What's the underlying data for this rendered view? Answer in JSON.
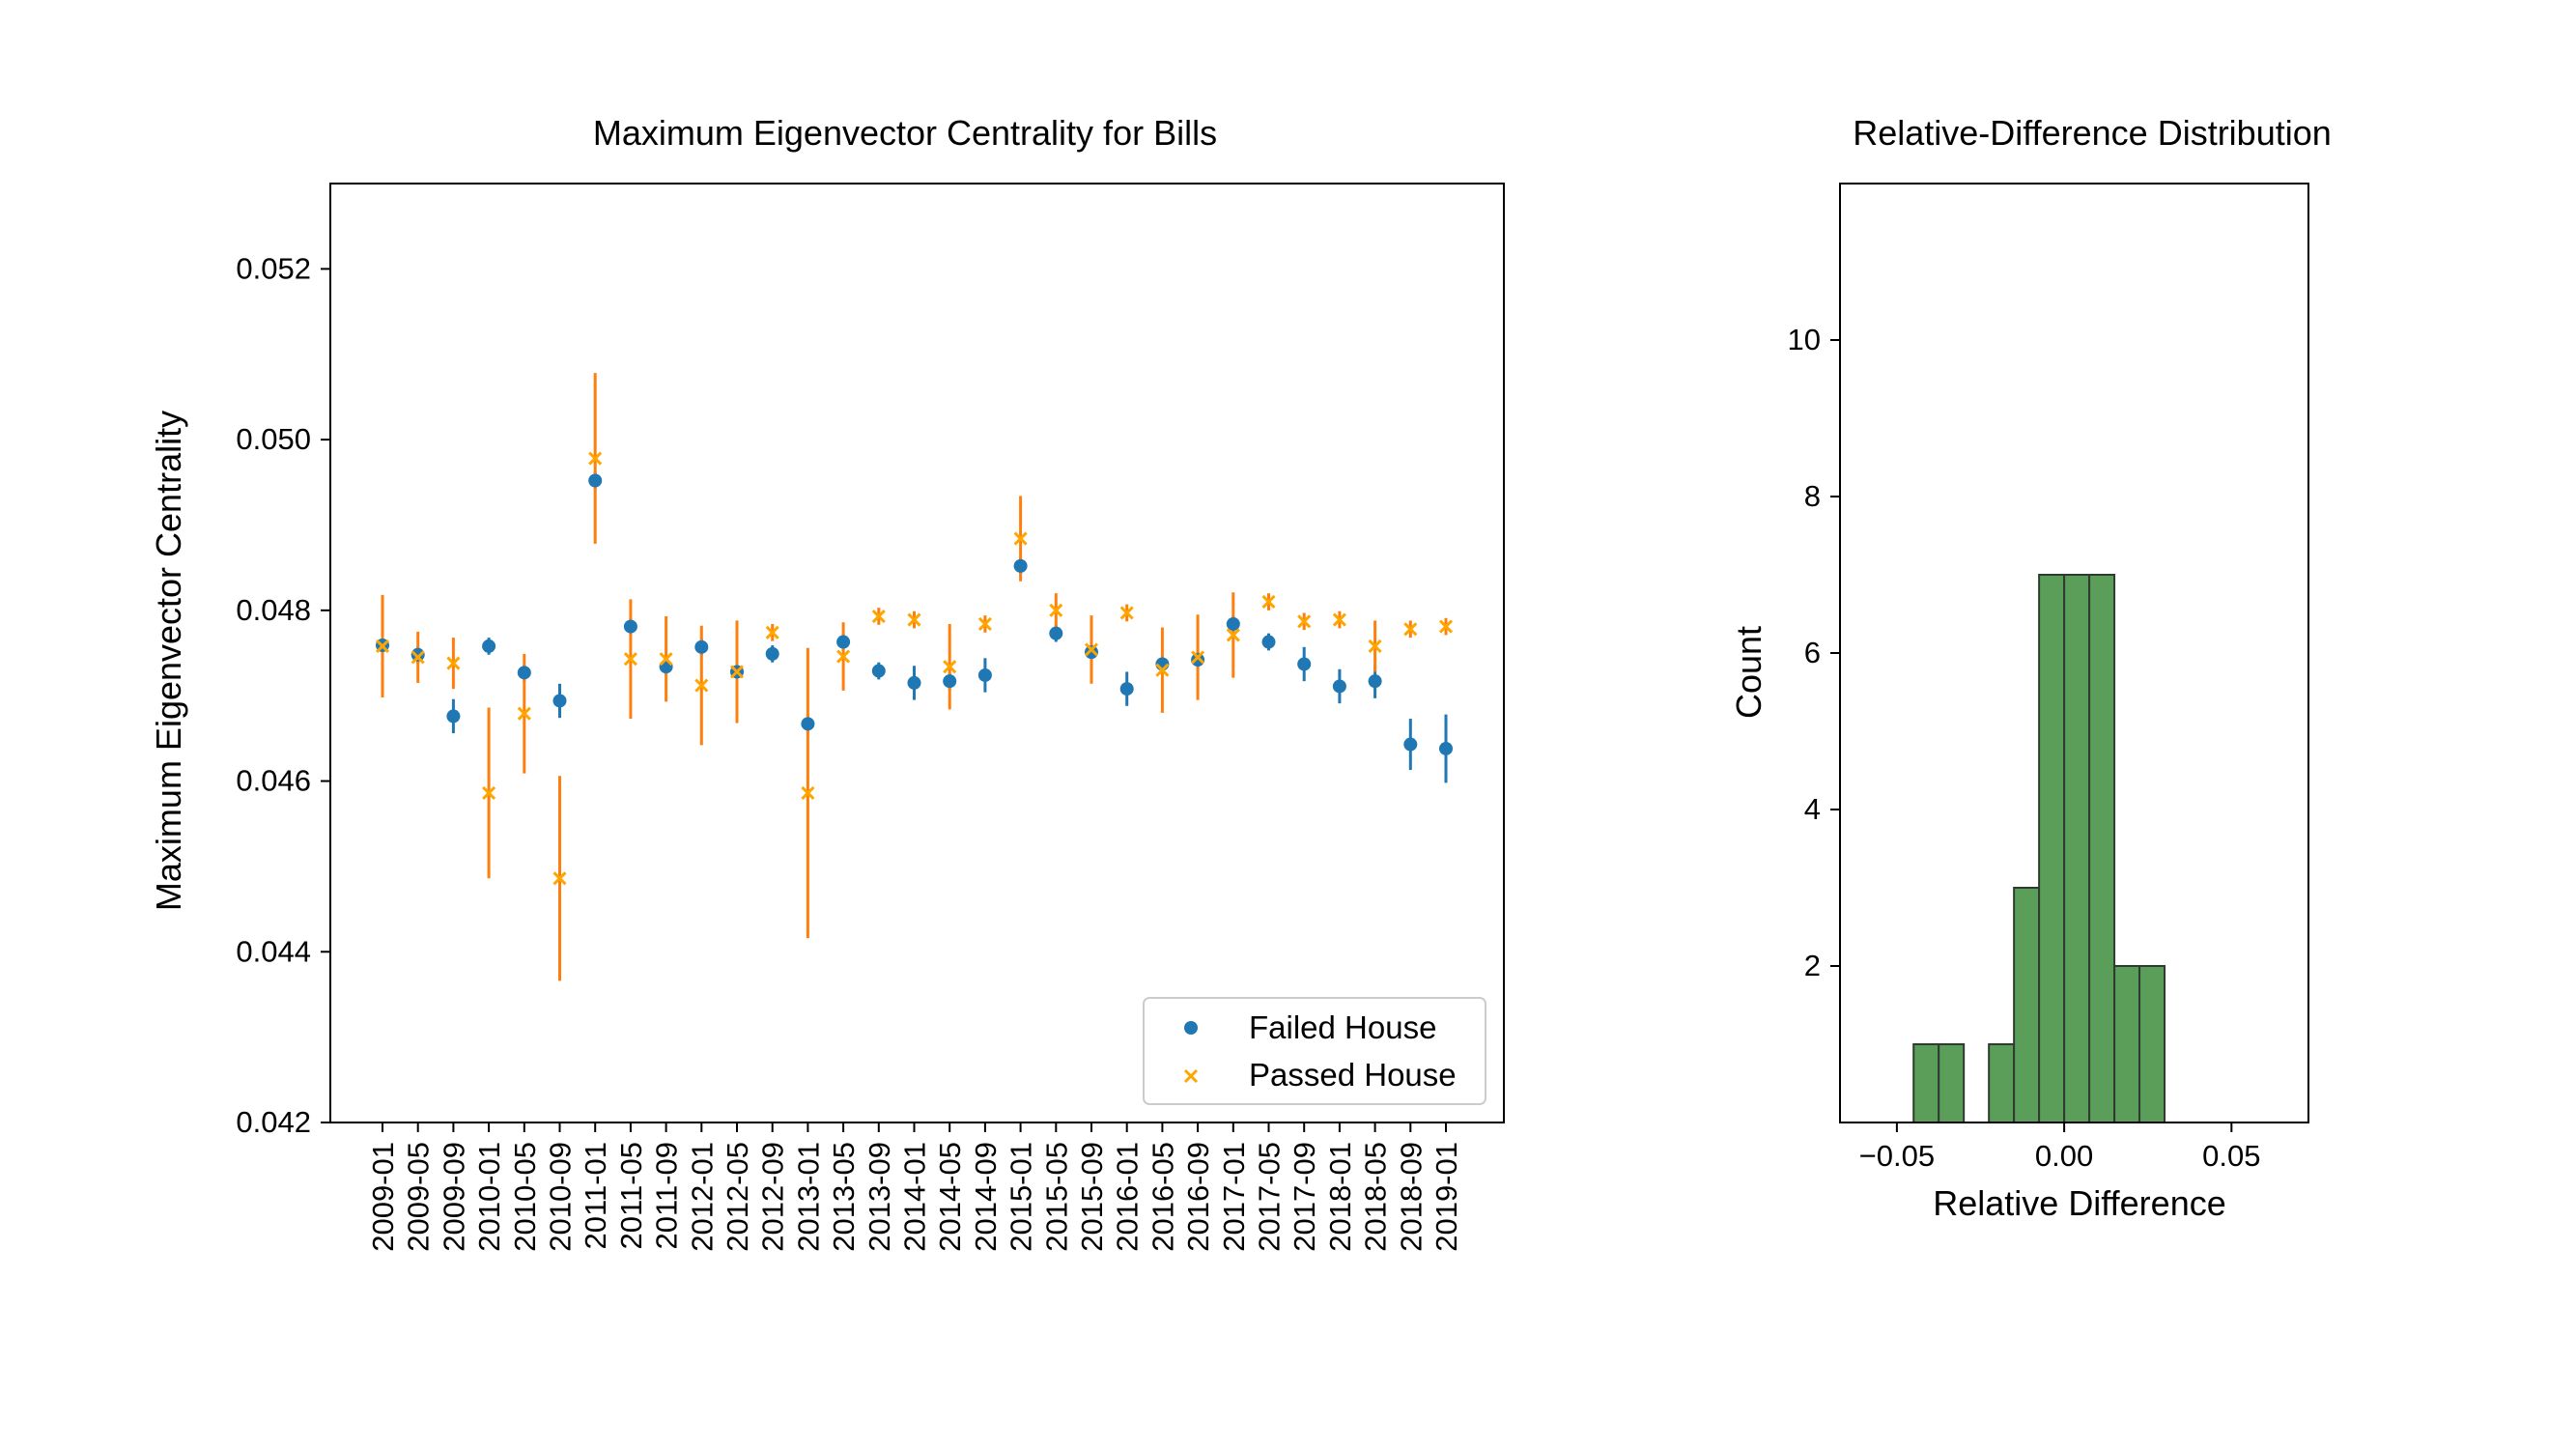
{
  "colors": {
    "failed": "#1f77b4",
    "passed_marker": "#ffa500",
    "passed_errorbar": "#ff7f0e",
    "hist_fill": "#5a9e5a",
    "hist_edge": "#2f3b2f"
  },
  "chart_data": [
    {
      "type": "scatter",
      "title": "Maximum Eigenvector Centrality for Bills",
      "xlabel": "",
      "ylabel": "Maximum Eigenvector Centrality",
      "ylim": [
        0.042,
        0.053
      ],
      "yticks": [
        "0.042",
        "0.044",
        "0.046",
        "0.048",
        "0.050",
        "0.052"
      ],
      "ytick_values": [
        0.042,
        0.044,
        0.046,
        0.048,
        0.05,
        0.052
      ],
      "grid": false,
      "legend_position": "bottom-right",
      "categories": [
        "2009-01",
        "2009-05",
        "2009-09",
        "2010-01",
        "2010-05",
        "2010-09",
        "2011-01",
        "2011-05",
        "2011-09",
        "2012-01",
        "2012-05",
        "2012-09",
        "2013-01",
        "2013-05",
        "2013-09",
        "2014-01",
        "2014-05",
        "2014-09",
        "2015-01",
        "2015-05",
        "2015-09",
        "2016-01",
        "2016-05",
        "2016-09",
        "2017-01",
        "2017-05",
        "2017-09",
        "2018-01",
        "2018-05",
        "2018-09",
        "2019-01"
      ],
      "series": [
        {
          "name": "Failed House",
          "marker": "circle",
          "values": [
            0.04759,
            0.04748,
            0.04676,
            0.04758,
            0.04727,
            0.04694,
            0.04952,
            0.04781,
            0.04734,
            0.04757,
            0.04728,
            0.04749,
            0.04667,
            0.04763,
            0.04729,
            0.04715,
            0.04717,
            0.04724,
            0.04852,
            0.04773,
            0.04751,
            0.04708,
            0.04737,
            0.04742,
            0.04784,
            0.04763,
            0.04737,
            0.04711,
            0.04717,
            0.04643,
            0.04638
          ],
          "errors": [
            0.0002,
            0.0001,
            0.0002,
            0.0001,
            0.0001,
            0.0002,
            0.0001,
            0.0001,
            0.0001,
            0.0001,
            0.0001,
            0.0001,
            0.0001,
            0.0001,
            0.0001,
            0.0002,
            0.0001,
            0.0002,
            0.0001,
            0.0001,
            0.0001,
            0.0002,
            0.0001,
            0.0001,
            0.0001,
            0.0001,
            0.0002,
            0.0002,
            0.0002,
            0.0003,
            0.0004
          ]
        },
        {
          "name": "Passed House",
          "marker": "x",
          "values": [
            0.04758,
            0.04745,
            0.04738,
            0.04586,
            0.04679,
            0.04486,
            0.04978,
            0.04743,
            0.04743,
            0.04712,
            0.04728,
            0.04774,
            0.04586,
            0.04746,
            0.04793,
            0.04789,
            0.04734,
            0.04784,
            0.04884,
            0.048,
            0.04754,
            0.04797,
            0.0473,
            0.04745,
            0.04771,
            0.0481,
            0.04787,
            0.04789,
            0.04758,
            0.04778,
            0.04781
          ],
          "errors": [
            0.0006,
            0.0003,
            0.0003,
            0.001,
            0.0007,
            0.0012,
            0.001,
            0.0007,
            0.0005,
            0.0007,
            0.0006,
            0.0001,
            0.0017,
            0.0004,
            0.0001,
            0.0001,
            0.0005,
            0.0001,
            0.0005,
            0.0002,
            0.0004,
            0.0001,
            0.0005,
            0.0005,
            0.0005,
            0.0001,
            0.0001,
            0.0001,
            0.0003,
            0.0001,
            0.0001
          ]
        }
      ]
    },
    {
      "type": "bar",
      "title": "Relative-Difference Distribution",
      "xlabel": "Relative Difference",
      "ylabel": "Count",
      "xlim": [
        -0.067,
        0.073
      ],
      "ylim": [
        0,
        12
      ],
      "xticks": [
        "−0.05",
        "0.00",
        "0.05"
      ],
      "xtick_values": [
        -0.05,
        0.0,
        0.05
      ],
      "yticks": [
        "2",
        "4",
        "6",
        "8",
        "10"
      ],
      "ytick_values": [
        2,
        4,
        6,
        8,
        10
      ],
      "grid": false,
      "bin_edges": [
        -0.045,
        -0.0375,
        -0.03,
        -0.0225,
        -0.015,
        -0.0075,
        0.0,
        0.0075,
        0.015,
        0.0225,
        0.03
      ],
      "values": [
        1,
        1,
        0,
        1,
        3,
        7,
        7,
        7,
        2,
        2
      ]
    }
  ]
}
